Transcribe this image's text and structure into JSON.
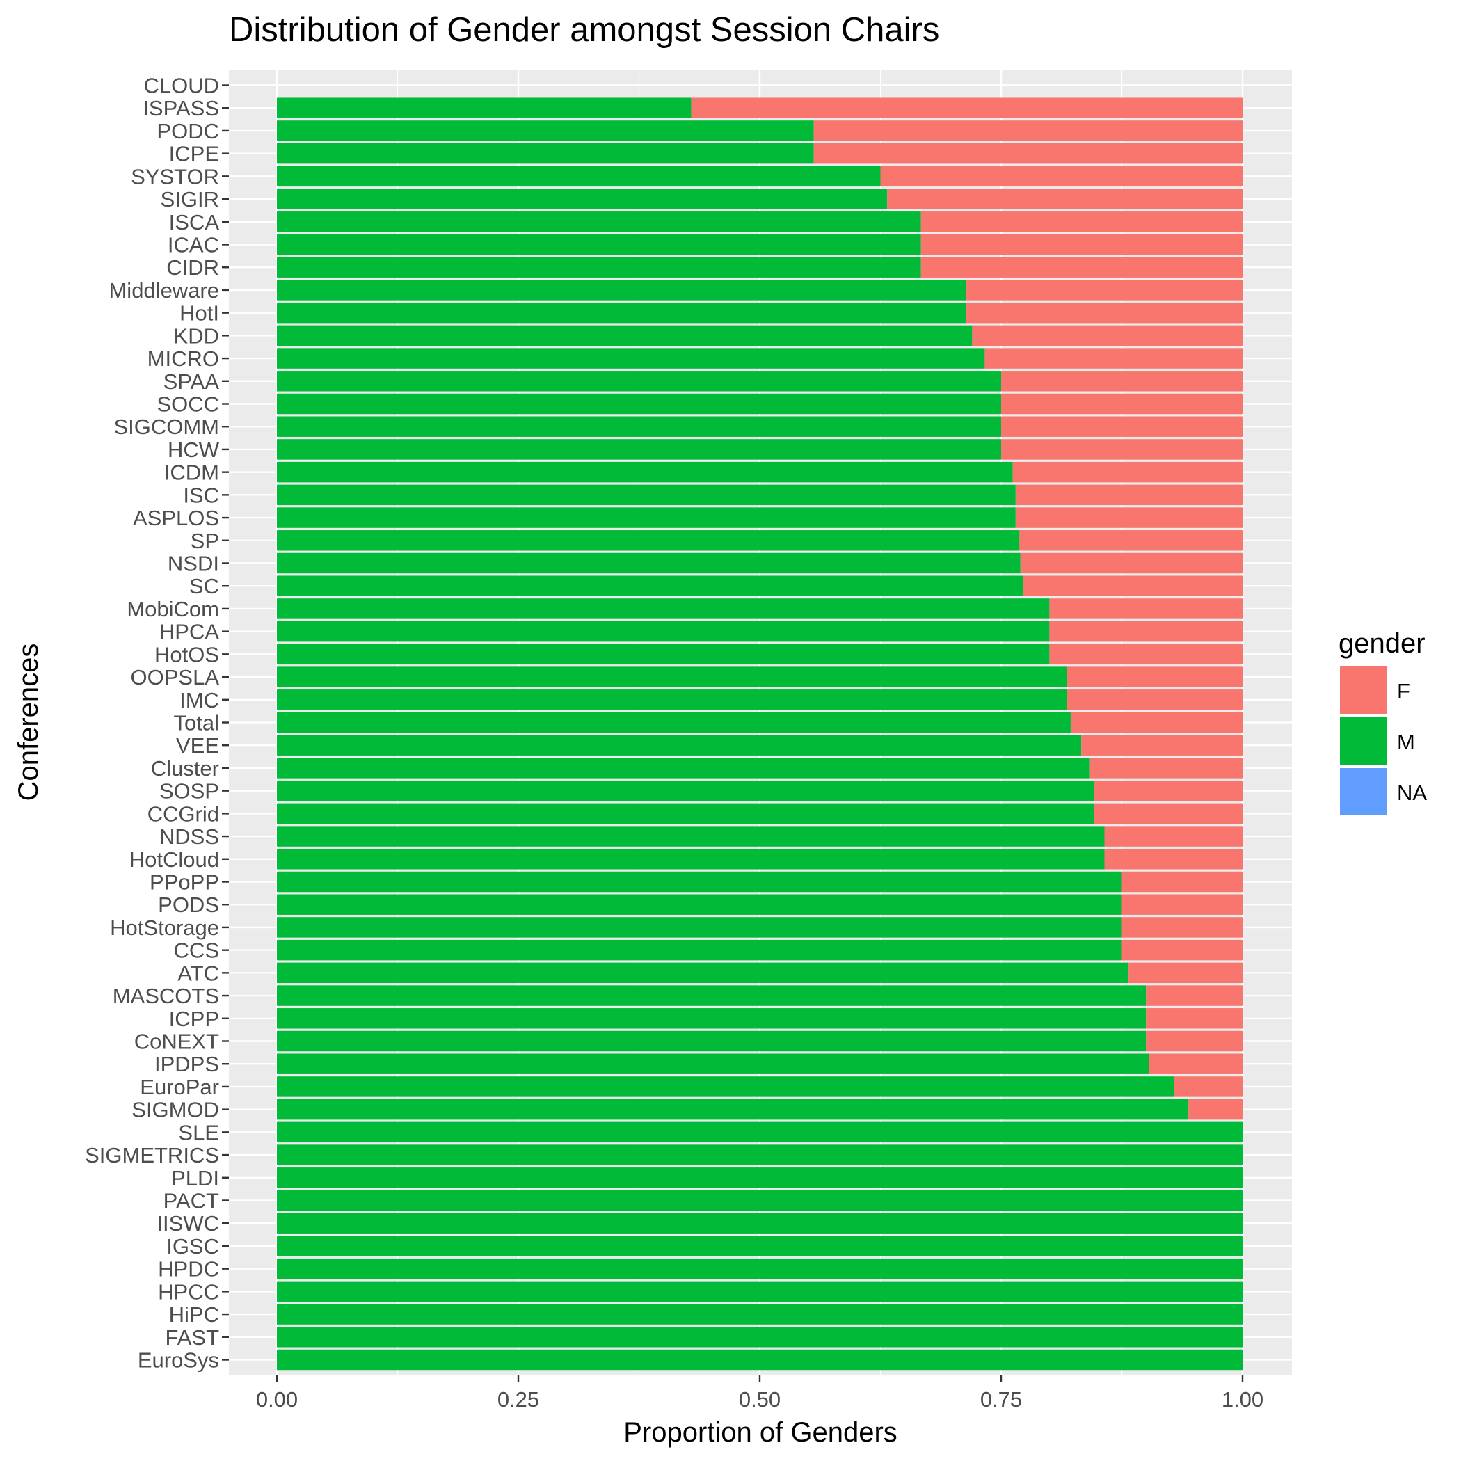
{
  "chart_data": {
    "type": "bar",
    "orientation": "horizontal",
    "stacked": true,
    "title": "Distribution of Gender amongst Session Chairs",
    "xlabel": "Proportion of Genders",
    "ylabel": "Conferences",
    "xlim": [
      0,
      1
    ],
    "x_ticks": [
      "0.00",
      "0.25",
      "0.50",
      "0.75",
      "1.00"
    ],
    "grid": true,
    "legend": {
      "title": "gender",
      "position": "right",
      "entries": [
        {
          "label": "F",
          "color": "#F8766D"
        },
        {
          "label": "M",
          "color": "#00BA38"
        },
        {
          "label": "NA",
          "color": "#619CFF"
        }
      ]
    },
    "categories": [
      "CLOUD",
      "ISPASS",
      "PODC",
      "ICPE",
      "SYSTOR",
      "SIGIR",
      "ISCA",
      "ICAC",
      "CIDR",
      "Middleware",
      "HotI",
      "KDD",
      "MICRO",
      "SPAA",
      "SOCC",
      "SIGCOMM",
      "HCW",
      "ICDM",
      "ISC",
      "ASPLOS",
      "SP",
      "NSDI",
      "SC",
      "MobiCom",
      "HPCA",
      "HotOS",
      "OOPSLA",
      "IMC",
      "Total",
      "VEE",
      "Cluster",
      "SOSP",
      "CCGrid",
      "NDSS",
      "HotCloud",
      "PPoPP",
      "PODS",
      "HotStorage",
      "CCS",
      "ATC",
      "MASCOTS",
      "ICPP",
      "CoNEXT",
      "IPDPS",
      "EuroPar",
      "SIGMOD",
      "SLE",
      "SIGMETRICS",
      "PLDI",
      "PACT",
      "IISWC",
      "IGSC",
      "HPDC",
      "HPCC",
      "HiPC",
      "FAST",
      "EuroSys"
    ],
    "series": [
      {
        "name": "M",
        "color": "#00BA38",
        "values": [
          0,
          0.429,
          0.556,
          0.556,
          0.625,
          0.632,
          0.667,
          0.667,
          0.667,
          0.714,
          0.714,
          0.72,
          0.733,
          0.75,
          0.75,
          0.75,
          0.75,
          0.762,
          0.765,
          0.765,
          0.769,
          0.77,
          0.773,
          0.8,
          0.8,
          0.8,
          0.818,
          0.818,
          0.822,
          0.833,
          0.842,
          0.846,
          0.846,
          0.857,
          0.857,
          0.875,
          0.875,
          0.875,
          0.875,
          0.882,
          0.9,
          0.9,
          0.9,
          0.903,
          0.929,
          0.944,
          1,
          1,
          1,
          1,
          1,
          1,
          1,
          1,
          1,
          1,
          1
        ]
      },
      {
        "name": "F",
        "color": "#F8766D",
        "values": [
          0,
          0.571,
          0.444,
          0.444,
          0.375,
          0.368,
          0.333,
          0.333,
          0.333,
          0.286,
          0.286,
          0.28,
          0.267,
          0.25,
          0.25,
          0.25,
          0.25,
          0.238,
          0.235,
          0.235,
          0.231,
          0.23,
          0.227,
          0.2,
          0.2,
          0.2,
          0.182,
          0.182,
          0.178,
          0.167,
          0.158,
          0.154,
          0.154,
          0.143,
          0.143,
          0.125,
          0.125,
          0.125,
          0.125,
          0.118,
          0.1,
          0.1,
          0.1,
          0.097,
          0.071,
          0.056,
          0,
          0,
          0,
          0,
          0,
          0,
          0,
          0,
          0,
          0,
          0
        ]
      },
      {
        "name": "NA",
        "color": "#619CFF",
        "values": [
          0,
          0,
          0,
          0,
          0,
          0,
          0,
          0,
          0,
          0,
          0,
          0,
          0,
          0,
          0,
          0,
          0,
          0,
          0,
          0,
          0,
          0,
          0,
          0,
          0,
          0,
          0,
          0,
          0,
          0,
          0,
          0,
          0,
          0,
          0,
          0,
          0,
          0,
          0,
          0,
          0,
          0,
          0,
          0,
          0,
          0,
          0,
          0,
          0,
          0,
          0,
          0,
          0,
          0,
          0,
          0,
          0
        ]
      }
    ]
  }
}
